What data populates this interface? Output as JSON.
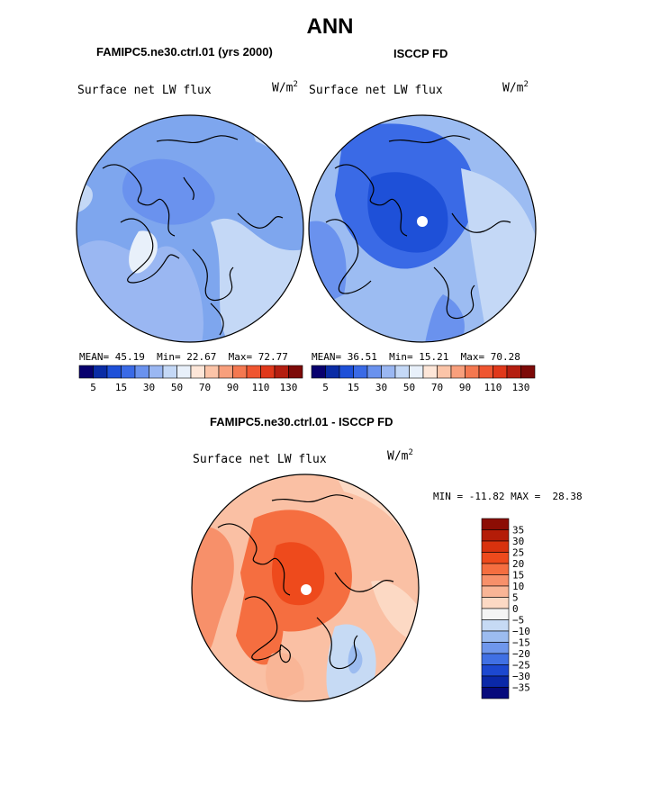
{
  "title": "ANN",
  "panels": [
    {
      "title": "FAMIPC5.ne30.ctrl.01 (yrs 2000)",
      "plot_label": "Surface net LW flux",
      "units": "W/m",
      "units_sup": "2",
      "stats": {
        "mean_label": "MEAN=",
        "mean": "45.19",
        "min_label": "Min=",
        "min": "22.67",
        "max_label": "Max=",
        "max": "72.77"
      },
      "colorbar_labels": [
        "5",
        "15",
        "30",
        "50",
        "70",
        "90",
        "110",
        "130"
      ]
    },
    {
      "title": "ISCCP FD",
      "plot_label": "Surface net LW flux",
      "units": "W/m",
      "units_sup": "2",
      "stats": {
        "mean_label": "MEAN=",
        "mean": "36.51",
        "min_label": "Min=",
        "min": "15.21",
        "max_label": "Max=",
        "max": "70.28"
      },
      "colorbar_labels": [
        "5",
        "15",
        "30",
        "50",
        "70",
        "90",
        "110",
        "130"
      ]
    }
  ],
  "difference": {
    "title": "FAMIPC5.ne30.ctrl.01 - ISCCP FD",
    "plot_label": "Surface net LW flux",
    "units": "W/m",
    "units_sup": "2",
    "min_label": "MIN =",
    "min": "-11.82",
    "max_label": "MAX =",
    "max": "28.38",
    "colorbar_labels": [
      "35",
      "30",
      "25",
      "20",
      "15",
      "10",
      "5",
      "0",
      "-5",
      "-10",
      "-15",
      "-20",
      "-25",
      "-30",
      "-35"
    ]
  },
  "colors": {
    "abs_scale": [
      "#08006e",
      "#0a2ca5",
      "#1e50d8",
      "#3a6ae6",
      "#6a92ee",
      "#9ab7f2",
      "#c4d8f6",
      "#e8f0fa",
      "#fde6d8",
      "#fbc4a8",
      "#f89f7c",
      "#f47850",
      "#ef5530",
      "#e0381a",
      "#b41e10",
      "#7d0a08"
    ],
    "diff_scale": [
      "#8c0d04",
      "#b41c08",
      "#d8320e",
      "#ee4a1c",
      "#f56e40",
      "#f7906a",
      "#f9b596",
      "#fcd9c4",
      "#f4f4f4",
      "#c6daf4",
      "#9cbcf0",
      "#6f97ec",
      "#4070e4",
      "#1c48d0",
      "#0a28a8",
      "#060a7c"
    ],
    "map_base_model": "#7ea6ee",
    "map_base_obs": "#9cbcf2",
    "map_base_diff": "#fac0a4"
  }
}
